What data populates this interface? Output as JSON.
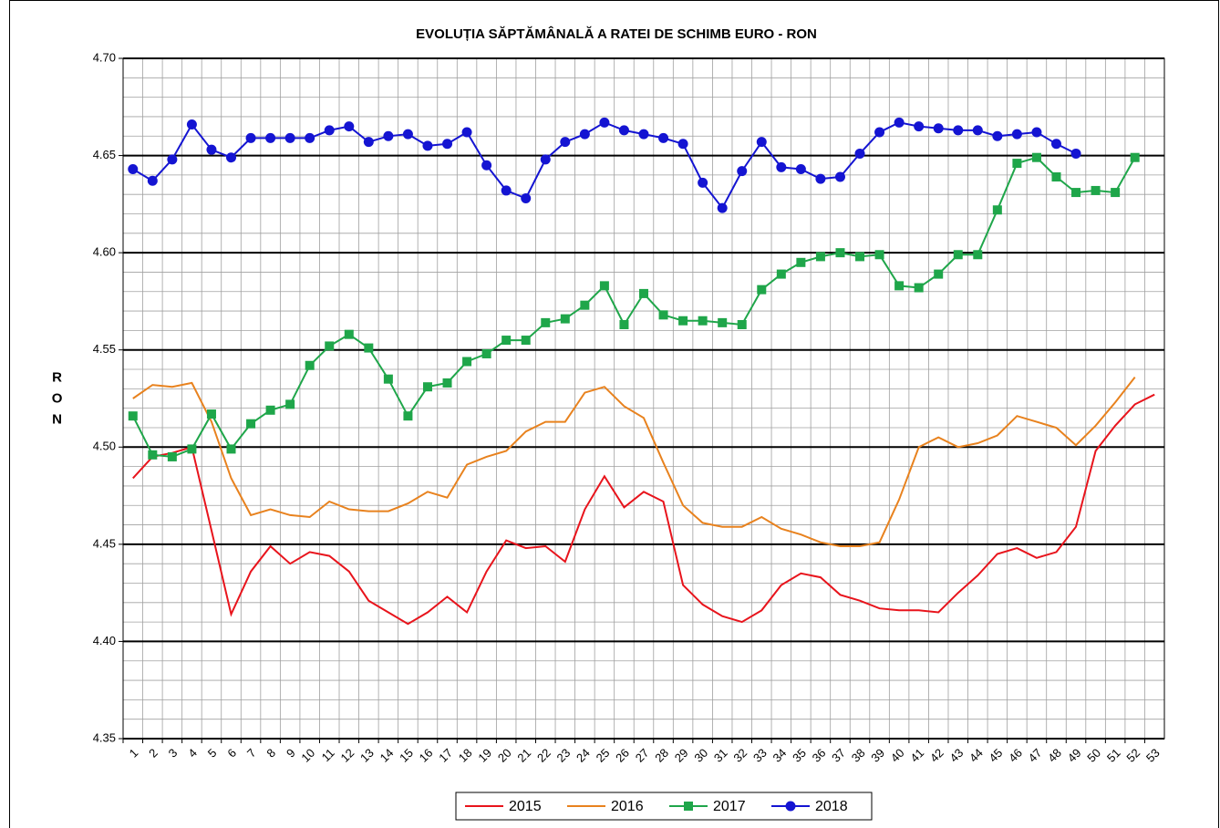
{
  "chart_data": {
    "type": "line",
    "title": "EVOLUȚIA SĂPTĂMÂNALĂ A RATEI DE SCHIMB EURO - RON",
    "ylabel": "RON",
    "categories": [
      "1",
      "2",
      "3",
      "4",
      "5",
      "6",
      "7",
      "8",
      "9",
      "10",
      "11",
      "12",
      "13",
      "14",
      "15",
      "16",
      "17",
      "18",
      "19",
      "20",
      "21",
      "22",
      "23",
      "24",
      "25",
      "26",
      "27",
      "28",
      "29",
      "30",
      "31",
      "32",
      "33",
      "34",
      "35",
      "36",
      "37",
      "38",
      "39",
      "40",
      "41",
      "42",
      "43",
      "44",
      "45",
      "46",
      "47",
      "48",
      "49",
      "50",
      "51",
      "52",
      "53"
    ],
    "ylim": [
      4.35,
      4.7
    ],
    "yticks": [
      4.35,
      {
        "value": 4.4,
        "label": "4.40"
      },
      4.45,
      {
        "value": 4.5,
        "label": "4.50"
      },
      4.55,
      {
        "value": 4.6,
        "label": "4.60"
      },
      4.65,
      {
        "value": 4.7,
        "label": "4.70"
      }
    ],
    "minor_yticks": [
      4.36,
      4.37,
      4.38,
      4.39,
      4.41,
      4.42,
      4.43,
      4.44,
      4.46,
      4.47,
      4.48,
      4.49,
      4.51,
      4.52,
      4.53,
      4.54,
      4.56,
      4.57,
      4.58,
      4.59,
      4.61,
      4.62,
      4.63,
      4.64,
      4.66,
      4.67,
      4.68,
      4.69
    ],
    "grid": true,
    "legend": "bottom",
    "series": [
      {
        "name": "2015",
        "color": "#e8141c",
        "marker": null,
        "values": [
          4.484,
          4.495,
          4.497,
          4.5,
          4.457,
          4.414,
          4.436,
          4.449,
          4.44,
          4.446,
          4.444,
          4.436,
          4.421,
          4.415,
          4.409,
          4.415,
          4.423,
          4.415,
          4.436,
          4.452,
          4.448,
          4.449,
          4.441,
          4.468,
          4.485,
          4.469,
          4.477,
          4.472,
          4.429,
          4.419,
          4.413,
          4.41,
          4.416,
          4.429,
          4.435,
          4.433,
          4.424,
          4.421,
          4.417,
          4.416,
          4.416,
          4.415,
          4.425,
          4.434,
          4.445,
          4.448,
          4.443,
          4.446,
          4.459,
          4.498,
          4.511,
          4.522,
          4.527
        ]
      },
      {
        "name": "2016",
        "color": "#e8821e",
        "marker": null,
        "values": [
          4.525,
          4.532,
          4.531,
          4.533,
          4.513,
          4.484,
          4.465,
          4.468,
          4.465,
          4.464,
          4.472,
          4.468,
          4.467,
          4.467,
          4.471,
          4.477,
          4.474,
          4.491,
          4.495,
          4.498,
          4.508,
          4.513,
          4.513,
          4.528,
          4.531,
          4.521,
          4.515,
          4.492,
          4.47,
          4.461,
          4.459,
          4.459,
          4.464,
          4.458,
          4.455,
          4.451,
          4.449,
          4.449,
          4.451,
          4.473,
          4.5,
          4.505,
          4.5,
          4.502,
          4.506,
          4.516,
          4.513,
          4.51,
          4.501,
          4.511,
          4.523,
          4.536,
          null
        ]
      },
      {
        "name": "2017",
        "color": "#1fa64a",
        "marker": "square",
        "values": [
          4.516,
          4.496,
          4.495,
          4.499,
          4.517,
          4.499,
          4.512,
          4.519,
          4.522,
          4.542,
          4.552,
          4.558,
          4.551,
          4.535,
          4.516,
          4.531,
          4.533,
          4.544,
          4.548,
          4.555,
          4.555,
          4.564,
          4.566,
          4.573,
          4.583,
          4.563,
          4.579,
          4.568,
          4.565,
          4.565,
          4.564,
          4.563,
          4.581,
          4.589,
          4.595,
          4.598,
          4.6,
          4.598,
          4.599,
          4.583,
          4.582,
          4.589,
          4.599,
          4.599,
          4.622,
          4.646,
          4.649,
          4.639,
          4.631,
          4.632,
          4.631,
          4.649,
          null
        ]
      },
      {
        "name": "2018",
        "color": "#1414d2",
        "marker": "circle",
        "values": [
          4.643,
          4.637,
          4.648,
          4.666,
          4.653,
          4.649,
          4.659,
          4.659,
          4.659,
          4.659,
          4.663,
          4.665,
          4.657,
          4.66,
          4.661,
          4.655,
          4.656,
          4.662,
          4.645,
          4.632,
          4.628,
          4.648,
          4.657,
          4.661,
          4.667,
          4.663,
          4.661,
          4.659,
          4.656,
          4.636,
          4.623,
          4.642,
          4.657,
          4.644,
          4.643,
          4.638,
          4.639,
          4.651,
          4.662,
          4.667,
          4.665,
          4.664,
          4.663,
          4.663,
          4.66,
          4.661,
          4.662,
          4.656,
          4.651,
          null,
          null,
          null,
          null
        ]
      }
    ]
  }
}
